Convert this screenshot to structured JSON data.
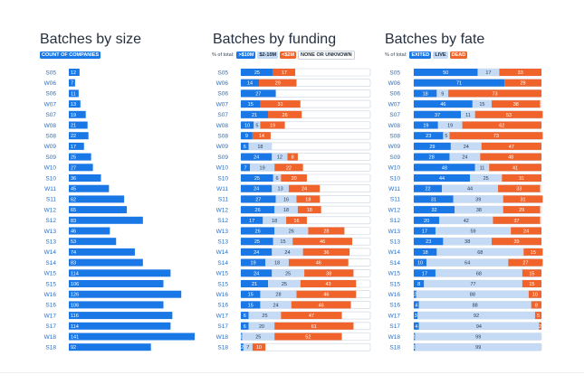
{
  "colors": {
    "blue": "#1a78e6",
    "orange": "#f0642c",
    "light_blue": "#c4daf5",
    "white_seg": "#ffffff",
    "label_blue": "#1d6fd1"
  },
  "size_panel": {
    "title": "Batches by size",
    "legend": "COUNT OF COMPANIES"
  },
  "funding_panel": {
    "title": "Batches by funding",
    "legend_prefix": "% of total:",
    "legend": [
      {
        "label": ">$10M",
        "color": "#1a78e6",
        "text_color": "#ffffff"
      },
      {
        "label": "$2-10M",
        "color": "#c4daf5",
        "text_color": "#1e2a3a"
      },
      {
        "label": "<$2M",
        "color": "#f0642c",
        "text_color": "#ffffff"
      },
      {
        "label": "NONE OR UNKNOWN",
        "color": "#ffffff",
        "text_color": "#1e2a3a"
      }
    ]
  },
  "fate_panel": {
    "title": "Batches by fate",
    "legend_prefix": "% of total:",
    "legend": [
      {
        "label": "EXITED",
        "color": "#1a78e6",
        "text_color": "#ffffff"
      },
      {
        "label": "LIVE",
        "color": "#c4daf5",
        "text_color": "#1e2a3a"
      },
      {
        "label": "DEAD",
        "color": "#f0642c",
        "text_color": "#ffffff"
      }
    ]
  },
  "chart_data": [
    {
      "type": "bar",
      "title": "Batches by size",
      "legend": [
        "COUNT OF COMPANIES"
      ],
      "categories": [
        "S05",
        "W06",
        "S06",
        "W07",
        "S07",
        "W08",
        "S08",
        "W09",
        "S09",
        "W10",
        "S10",
        "W11",
        "S11",
        "W12",
        "S12",
        "W13",
        "S13",
        "W14",
        "S14",
        "W15",
        "S15",
        "W16",
        "S16",
        "W17",
        "S17",
        "W18",
        "S18"
      ],
      "values": [
        12,
        7,
        11,
        13,
        19,
        21,
        22,
        17,
        25,
        27,
        36,
        45,
        62,
        65,
        83,
        46,
        53,
        74,
        83,
        114,
        106,
        126,
        106,
        116,
        114,
        141,
        92
      ],
      "xlim": [
        0,
        141
      ]
    },
    {
      "type": "bar",
      "stacked": true,
      "title": "Batches by funding",
      "categories": [
        "S05",
        "W06",
        "S06",
        "W07",
        "S07",
        "W08",
        "S08",
        "W09",
        "S09",
        "W10",
        "S10",
        "W11",
        "S11",
        "W12",
        "S12",
        "W13",
        "S13",
        "W14",
        "S14",
        "W15",
        "S15",
        "W16",
        "S16",
        "W17",
        "S17",
        "W18",
        "S18"
      ],
      "series": [
        {
          "name": ">$10M",
          "values": [
            25,
            14,
            27,
            15,
            21,
            10,
            9,
            6,
            24,
            7,
            25,
            24,
            27,
            26,
            17,
            26,
            25,
            24,
            19,
            24,
            21,
            15,
            15,
            6,
            6,
            1,
            2
          ]
        },
        {
          "name": "$2-10M",
          "values": [
            0,
            0,
            0,
            0,
            0,
            5,
            0,
            18,
            12,
            19,
            6,
            13,
            16,
            18,
            18,
            26,
            15,
            24,
            18,
            25,
            25,
            28,
            24,
            25,
            20,
            25,
            7
          ]
        },
        {
          "name": "<$2M",
          "values": [
            17,
            29,
            0,
            31,
            26,
            19,
            14,
            0,
            8,
            22,
            20,
            24,
            18,
            18,
            16,
            28,
            46,
            36,
            46,
            38,
            43,
            46,
            46,
            47,
            61,
            52,
            10
          ]
        },
        {
          "name": "NONE OR UNKNOWN",
          "values": [
            58,
            57,
            73,
            54,
            53,
            66,
            77,
            76,
            56,
            52,
            49,
            39,
            39,
            38,
            49,
            20,
            14,
            16,
            17,
            13,
            11,
            11,
            15,
            22,
            13,
            22,
            81
          ]
        }
      ],
      "xlim": [
        0,
        100
      ]
    },
    {
      "type": "bar",
      "stacked": true,
      "title": "Batches by fate",
      "categories": [
        "S05",
        "W06",
        "S06",
        "W07",
        "S07",
        "W08",
        "S08",
        "W09",
        "S09",
        "W10",
        "S10",
        "W11",
        "S11",
        "W12",
        "S12",
        "W13",
        "S13",
        "W14",
        "S14",
        "W15",
        "S15",
        "W16",
        "S16",
        "W17",
        "S17",
        "W18",
        "S18"
      ],
      "series": [
        {
          "name": "EXITED",
          "values": [
            50,
            71,
            18,
            46,
            37,
            19,
            23,
            29,
            28,
            48,
            44,
            22,
            31,
            32,
            20,
            17,
            23,
            18,
            10,
            17,
            8,
            2,
            4,
            3,
            4,
            1,
            1
          ]
        },
        {
          "name": "LIVE",
          "values": [
            17,
            0,
            9,
            15,
            11,
            19,
            5,
            24,
            24,
            11,
            25,
            44,
            39,
            38,
            42,
            59,
            38,
            68,
            64,
            68,
            77,
            88,
            88,
            92,
            94,
            99,
            99
          ]
        },
        {
          "name": "DEAD",
          "values": [
            33,
            29,
            73,
            38,
            53,
            62,
            73,
            47,
            48,
            41,
            31,
            33,
            31,
            29,
            37,
            24,
            39,
            15,
            27,
            15,
            15,
            10,
            8,
            5,
            2,
            0,
            0
          ]
        }
      ],
      "xlim": [
        0,
        100
      ]
    }
  ]
}
